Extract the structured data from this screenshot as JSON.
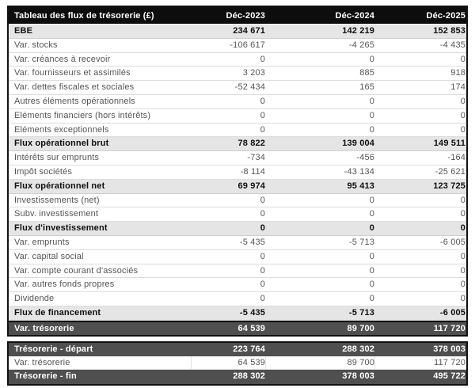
{
  "table": {
    "title": "Tableau des flux de trésorerie (£)",
    "columns": [
      "Déc-2023",
      "Déc-2024",
      "Déc-2025"
    ],
    "rows": [
      {
        "label": "EBE",
        "values": [
          "234 671",
          "142 219",
          "152 853"
        ],
        "style": "subtotal"
      },
      {
        "label": "Var. stocks",
        "values": [
          "-106 617",
          "-4 265",
          "-4 435"
        ],
        "style": "plain"
      },
      {
        "label": "Var. créances à recevoir",
        "values": [
          "0",
          "0",
          "0"
        ],
        "style": "plain"
      },
      {
        "label": "Var. fournisseurs et assimilés",
        "values": [
          "3 203",
          "885",
          "918"
        ],
        "style": "plain"
      },
      {
        "label": "Var. dettes fiscales et sociales",
        "values": [
          "-52 434",
          "165",
          "174"
        ],
        "style": "plain"
      },
      {
        "label": "Autres éléments opérationnels",
        "values": [
          "0",
          "0",
          "0"
        ],
        "style": "plain"
      },
      {
        "label": "Eléments financiers (hors intérêts)",
        "values": [
          "0",
          "0",
          "0"
        ],
        "style": "plain"
      },
      {
        "label": "Eléments exceptionnels",
        "values": [
          "0",
          "0",
          "0"
        ],
        "style": "plain"
      },
      {
        "label": "Flux opérationnel brut",
        "values": [
          "78 822",
          "139 004",
          "149 511"
        ],
        "style": "subtotal"
      },
      {
        "label": "Intérêts sur emprunts",
        "values": [
          "-734",
          "-456",
          "-164"
        ],
        "style": "plain"
      },
      {
        "label": "Impôt sociétés",
        "values": [
          "-8 114",
          "-43 134",
          "-25 621"
        ],
        "style": "plain"
      },
      {
        "label": "Flux opérationnel net",
        "values": [
          "69 974",
          "95 413",
          "123 725"
        ],
        "style": "subtotal"
      },
      {
        "label": "Investissements (net)",
        "values": [
          "0",
          "0",
          "0"
        ],
        "style": "plain"
      },
      {
        "label": "Subv. investissement",
        "values": [
          "0",
          "0",
          "0"
        ],
        "style": "plain"
      },
      {
        "label": "Flux d'investissement",
        "values": [
          "0",
          "0",
          "0"
        ],
        "style": "subtotal"
      },
      {
        "label": "Var. emprunts",
        "values": [
          "-5 435",
          "-5 713",
          "-6 005"
        ],
        "style": "plain"
      },
      {
        "label": "Var. capital social",
        "values": [
          "0",
          "0",
          "0"
        ],
        "style": "plain"
      },
      {
        "label": "Var. compte courant d'associés",
        "values": [
          "0",
          "0",
          "0"
        ],
        "style": "plain"
      },
      {
        "label": "Var. autres fonds propres",
        "values": [
          "0",
          "0",
          "0"
        ],
        "style": "plain"
      },
      {
        "label": "Dividende",
        "values": [
          "0",
          "0",
          "0"
        ],
        "style": "plain"
      },
      {
        "label": "Flux de financement",
        "values": [
          "-5 435",
          "-5 713",
          "-6 005"
        ],
        "style": "subtotal"
      },
      {
        "label": "Var. trésorerie",
        "values": [
          "64 539",
          "89 700",
          "117 720"
        ],
        "style": "dark"
      }
    ],
    "summary_rows": [
      {
        "label": "Trésorerie - départ",
        "values": [
          "223 764",
          "288 302",
          "378 003"
        ],
        "style": "dark"
      },
      {
        "label": "Var. trésorerie",
        "values": [
          "64 539",
          "89 700",
          "117 720"
        ],
        "style": "plain"
      },
      {
        "label": "Trésorerie - fin",
        "values": [
          "288 302",
          "378 003",
          "495 722"
        ],
        "style": "dark"
      }
    ]
  },
  "colors": {
    "header_bg": "#0d0d0d",
    "subtotal_row_bg": "#e5e5e5",
    "dark_row_bg": "#4f4f4f",
    "plain_text": "#555555",
    "strong_text": "#0f0f0f",
    "inverse_text": "#ffffff",
    "outer_border": "#121212",
    "row_divider": "#dddddd"
  },
  "chart_data": {
    "type": "table",
    "title": "Tableau des flux de trésorerie (£)",
    "categories": [
      "Déc-2023",
      "Déc-2024",
      "Déc-2025"
    ],
    "series": [
      {
        "name": "EBE",
        "values": [
          234671,
          142219,
          152853
        ]
      },
      {
        "name": "Var. stocks",
        "values": [
          -106617,
          -4265,
          -4435
        ]
      },
      {
        "name": "Var. créances à recevoir",
        "values": [
          0,
          0,
          0
        ]
      },
      {
        "name": "Var. fournisseurs et assimilés",
        "values": [
          3203,
          885,
          918
        ]
      },
      {
        "name": "Var. dettes fiscales et sociales",
        "values": [
          -52434,
          165,
          174
        ]
      },
      {
        "name": "Autres éléments opérationnels",
        "values": [
          0,
          0,
          0
        ]
      },
      {
        "name": "Eléments financiers (hors intérêts)",
        "values": [
          0,
          0,
          0
        ]
      },
      {
        "name": "Eléments exceptionnels",
        "values": [
          0,
          0,
          0
        ]
      },
      {
        "name": "Flux opérationnel brut",
        "values": [
          78822,
          139004,
          149511
        ]
      },
      {
        "name": "Intérêts sur emprunts",
        "values": [
          -734,
          -456,
          -164
        ]
      },
      {
        "name": "Impôt sociétés",
        "values": [
          -8114,
          -43134,
          -25621
        ]
      },
      {
        "name": "Flux opérationnel net",
        "values": [
          69974,
          95413,
          123725
        ]
      },
      {
        "name": "Investissements (net)",
        "values": [
          0,
          0,
          0
        ]
      },
      {
        "name": "Subv. investissement",
        "values": [
          0,
          0,
          0
        ]
      },
      {
        "name": "Flux d'investissement",
        "values": [
          0,
          0,
          0
        ]
      },
      {
        "name": "Var. emprunts",
        "values": [
          -5435,
          -5713,
          -6005
        ]
      },
      {
        "name": "Var. capital social",
        "values": [
          0,
          0,
          0
        ]
      },
      {
        "name": "Var. compte courant d'associés",
        "values": [
          0,
          0,
          0
        ]
      },
      {
        "name": "Var. autres fonds propres",
        "values": [
          0,
          0,
          0
        ]
      },
      {
        "name": "Dividende",
        "values": [
          0,
          0,
          0
        ]
      },
      {
        "name": "Flux de financement",
        "values": [
          -5435,
          -5713,
          -6005
        ]
      },
      {
        "name": "Var. trésorerie",
        "values": [
          64539,
          89700,
          117720
        ]
      },
      {
        "name": "Trésorerie - départ",
        "values": [
          223764,
          288302,
          378003
        ]
      },
      {
        "name": "Var. trésorerie (détail)",
        "values": [
          64539,
          89700,
          117720
        ]
      },
      {
        "name": "Trésorerie - fin",
        "values": [
          288302,
          378003,
          495722
        ]
      }
    ]
  }
}
